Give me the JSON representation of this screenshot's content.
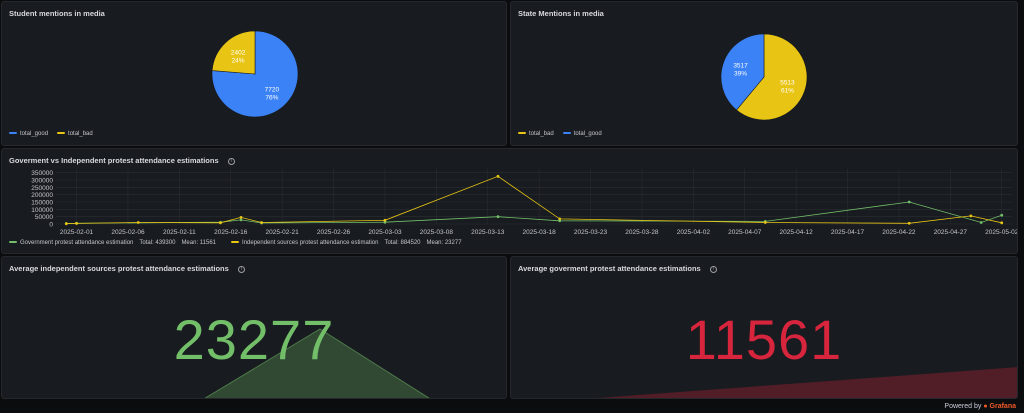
{
  "colors": {
    "good": "#3b82f6",
    "bad": "#e8c515",
    "green": "#73bf69",
    "red": "#d6253c",
    "grid": "#2a2d33"
  },
  "student": {
    "title": "Student mentions in media",
    "legend": [
      {
        "name": "total_good",
        "color": "#3b82f6"
      },
      {
        "name": "total_bad",
        "color": "#e8c515"
      }
    ],
    "chart_data": {
      "type": "pie",
      "slices": [
        {
          "name": "total_good",
          "value": 7720,
          "label": "7720",
          "pct": "76%"
        },
        {
          "name": "total_bad",
          "value": 2402,
          "label": "2402",
          "pct": "24%"
        }
      ]
    }
  },
  "state": {
    "title": "State Mentions in media",
    "legend": [
      {
        "name": "total_bad",
        "color": "#e8c515"
      },
      {
        "name": "total_good",
        "color": "#3b82f6"
      }
    ],
    "chart_data": {
      "type": "pie",
      "slices": [
        {
          "name": "total_bad",
          "value": 5513,
          "label": "5513",
          "pct": "61%"
        },
        {
          "name": "total_good",
          "value": 3517,
          "label": "3517",
          "pct": "39%"
        }
      ]
    }
  },
  "attendance": {
    "title": "Goverment vs Independent protest attendance estimations",
    "info_icon": "info-circle-icon",
    "legend": [
      {
        "name": "Government protest attendance estimation",
        "total": "Total: 439300",
        "mean": "Mean: 11561",
        "color": "#73bf69"
      },
      {
        "name": "Independent sources protest attendance estimation",
        "total": "Total: 884520",
        "mean": "Mean: 23277",
        "color": "#e8c515"
      }
    ],
    "chart_data": {
      "type": "line",
      "x_ticks": [
        "2025-02-01",
        "2025-02-06",
        "2025-02-11",
        "2025-02-16",
        "2025-02-21",
        "2025-02-26",
        "2025-03-03",
        "2025-03-08",
        "2025-03-13",
        "2025-03-18",
        "2025-03-23",
        "2025-03-28",
        "2025-04-02",
        "2025-04-07",
        "2025-04-12",
        "2025-04-17",
        "2025-04-22",
        "2025-04-27",
        "2025-05-02"
      ],
      "y_ticks": [
        0,
        50000,
        100000,
        150000,
        200000,
        250000,
        300000,
        350000
      ],
      "ylim": [
        0,
        375000
      ],
      "xlim": [
        "2025-01-30",
        "2025-05-03"
      ],
      "series": [
        {
          "name": "Government protest attendance estimation",
          "color": "#73bf69",
          "points": [
            {
              "x": "2025-01-31",
              "y": 3000
            },
            {
              "x": "2025-02-01",
              "y": 5000
            },
            {
              "x": "2025-02-15",
              "y": 12000
            },
            {
              "x": "2025-02-17",
              "y": 28000
            },
            {
              "x": "2025-02-19",
              "y": 7000
            },
            {
              "x": "2025-03-03",
              "y": 12000
            },
            {
              "x": "2025-03-14",
              "y": 50000
            },
            {
              "x": "2025-03-20",
              "y": 22000
            },
            {
              "x": "2025-04-09",
              "y": 18000
            },
            {
              "x": "2025-04-23",
              "y": 150000
            },
            {
              "x": "2025-04-30",
              "y": 10000
            },
            {
              "x": "2025-05-02",
              "y": 60000
            }
          ]
        },
        {
          "name": "Independent sources protest attendance estimation",
          "color": "#e8c515",
          "points": [
            {
              "x": "2025-01-31",
              "y": 2000
            },
            {
              "x": "2025-02-01",
              "y": 4000
            },
            {
              "x": "2025-02-07",
              "y": 10000
            },
            {
              "x": "2025-02-15",
              "y": 8000
            },
            {
              "x": "2025-02-17",
              "y": 45000
            },
            {
              "x": "2025-02-19",
              "y": 10000
            },
            {
              "x": "2025-03-03",
              "y": 25000
            },
            {
              "x": "2025-03-14",
              "y": 325000
            },
            {
              "x": "2025-03-20",
              "y": 35000
            },
            {
              "x": "2025-04-09",
              "y": 10000
            },
            {
              "x": "2025-04-23",
              "y": 5000
            },
            {
              "x": "2025-04-29",
              "y": 55000
            },
            {
              "x": "2025-05-02",
              "y": 8000
            }
          ]
        }
      ]
    }
  },
  "avg_independent": {
    "title": "Average independent sources protest attendance estimations",
    "value": "23277"
  },
  "avg_government": {
    "title": "Average goverment protest attendance estimations",
    "value": "11561"
  },
  "footer": {
    "powered_by": "Powered by",
    "brand": "Grafana"
  }
}
